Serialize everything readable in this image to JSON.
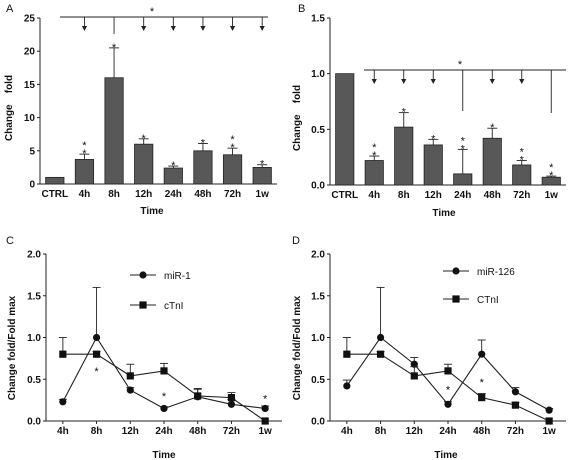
{
  "chart_data": [
    {
      "panel_label": "A",
      "type": "bar",
      "categories": [
        "CTRL",
        "4h",
        "8h",
        "12h",
        "24h",
        "48h",
        "72h",
        "1w"
      ],
      "values": [
        1.0,
        3.7,
        16.0,
        6.0,
        2.4,
        5.0,
        4.4,
        2.5
      ],
      "errors": [
        0.0,
        0.8,
        4.5,
        0.8,
        0.3,
        1.1,
        1.0,
        0.4
      ],
      "marks": [
        "",
        "*\n*",
        "*",
        "*",
        "*",
        "*",
        "*\n*",
        "*"
      ],
      "bracket_star": "*",
      "xlabel": "Time",
      "ylabel": "Change    fold",
      "ylim": [
        0,
        25
      ],
      "yticks": [
        "0",
        "5",
        "10",
        "15",
        "20",
        "25"
      ]
    },
    {
      "panel_label": "B",
      "type": "bar",
      "categories": [
        "CTRL",
        "4h",
        "8h",
        "12h",
        "24h",
        "48h",
        "72h",
        "1w"
      ],
      "values": [
        1.0,
        0.22,
        0.52,
        0.36,
        0.1,
        0.42,
        0.18,
        0.07
      ],
      "errors": [
        0.0,
        0.04,
        0.13,
        0.05,
        0.22,
        0.09,
        0.04,
        0.01
      ],
      "marks": [
        "",
        "*\n*",
        "*",
        "*",
        "*\n*",
        "*",
        "*\n*",
        "*\n*"
      ],
      "bracket_star": "*",
      "xlabel": "Time",
      "ylabel": "Change    fold",
      "ylim": [
        0,
        1.5
      ],
      "yticks": [
        "0.0",
        "0.5",
        "1.0",
        "1.5"
      ]
    },
    {
      "panel_label": "C",
      "type": "line",
      "x": [
        "4h",
        "8h",
        "12h",
        "24h",
        "48h",
        "72h",
        "1w"
      ],
      "series": [
        {
          "name": "miR-1",
          "marker": "circle",
          "values": [
            0.23,
            1.0,
            0.37,
            0.15,
            0.29,
            0.2,
            0.15
          ],
          "errors": [
            0.03,
            0.6,
            0.03,
            0.02,
            0.1,
            0.06,
            0.03
          ]
        },
        {
          "name": "cTnI",
          "marker": "square",
          "values": [
            0.8,
            0.8,
            0.54,
            0.6,
            0.3,
            0.28,
            0.0
          ],
          "errors": [
            0.2,
            0.03,
            0.14,
            0.09,
            0.08,
            0.06,
            0.0
          ]
        }
      ],
      "stars": [
        [
          "8h",
          0.6
        ],
        [
          "24h",
          0.3
        ],
        [
          "1w",
          0.27
        ]
      ],
      "xlabel": "Time",
      "ylabel": "Change fold/Fold max",
      "ylim": [
        0,
        2.0
      ],
      "yticks": [
        "0.0",
        "0.5",
        "1.0",
        "1.5",
        "2.0"
      ]
    },
    {
      "panel_label": "D",
      "type": "line",
      "x": [
        "4h",
        "8h",
        "12h",
        "24h",
        "48h",
        "72h",
        "1w"
      ],
      "series": [
        {
          "name": "miR-126",
          "marker": "circle",
          "values": [
            0.42,
            1.0,
            0.68,
            0.2,
            0.8,
            0.35,
            0.13
          ],
          "errors": [
            0.07,
            0.6,
            0.08,
            0.03,
            0.17,
            0.05,
            0.02
          ]
        },
        {
          "name": "CTnI",
          "marker": "square",
          "values": [
            0.8,
            0.8,
            0.54,
            0.6,
            0.28,
            0.19,
            0.0
          ],
          "errors": [
            0.2,
            0.03,
            0.11,
            0.08,
            0.05,
            0.03,
            0.0
          ]
        }
      ],
      "stars": [
        [
          "24h",
          0.38
        ],
        [
          "48h",
          0.47
        ]
      ],
      "xlabel": "Time",
      "ylabel": "Change fold/Fold max",
      "ylim": [
        0,
        2.0
      ],
      "yticks": [
        "0.0",
        "0.5",
        "1.0",
        "1.5",
        "2.0"
      ]
    }
  ]
}
